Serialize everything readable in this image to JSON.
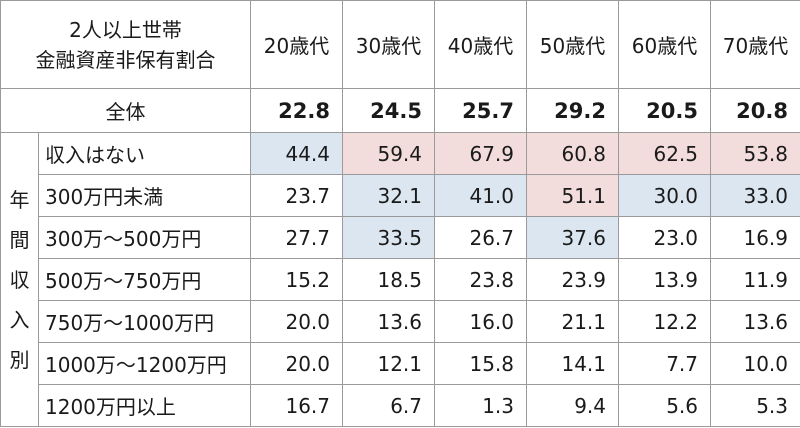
{
  "header": {
    "title_line1": "2人以上世帯",
    "title_line2": "金融資産非保有割合",
    "ages": [
      "20歳代",
      "30歳代",
      "40歳代",
      "50歳代",
      "60歳代",
      "70歳代"
    ]
  },
  "total": {
    "label": "全体",
    "values": [
      "22.8",
      "24.5",
      "25.7",
      "29.2",
      "20.5",
      "20.8"
    ]
  },
  "group_label_chars": [
    "年",
    "間",
    "収",
    "入",
    "別"
  ],
  "rows": [
    {
      "label": "収入はない",
      "values": [
        "44.4",
        "59.4",
        "67.9",
        "60.8",
        "62.5",
        "53.8"
      ],
      "highlight": [
        "blue",
        "red",
        "red",
        "red",
        "red",
        "red"
      ]
    },
    {
      "label": "300万円未満",
      "values": [
        "23.7",
        "32.1",
        "41.0",
        "51.1",
        "30.0",
        "33.0"
      ],
      "highlight": [
        "",
        "blue",
        "blue",
        "red",
        "blue",
        "blue"
      ]
    },
    {
      "label": "300万～500万円",
      "values": [
        "27.7",
        "33.5",
        "26.7",
        "37.6",
        "23.0",
        "16.9"
      ],
      "highlight": [
        "",
        "blue",
        "",
        "blue",
        "",
        ""
      ]
    },
    {
      "label": "500万～750万円",
      "values": [
        "15.2",
        "18.5",
        "23.8",
        "23.9",
        "13.9",
        "11.9"
      ],
      "highlight": [
        "",
        "",
        "",
        "",
        "",
        ""
      ]
    },
    {
      "label": "750万～1000万円",
      "values": [
        "20.0",
        "13.6",
        "16.0",
        "21.1",
        "12.2",
        "13.6"
      ],
      "highlight": [
        "",
        "",
        "",
        "",
        "",
        ""
      ]
    },
    {
      "label": "1000万～1200万円",
      "values": [
        "20.0",
        "12.1",
        "15.8",
        "14.1",
        "7.7",
        "10.0"
      ],
      "highlight": [
        "",
        "",
        "",
        "",
        "",
        ""
      ]
    },
    {
      "label": "1200万円以上",
      "values": [
        "16.7",
        "6.7",
        "1.3",
        "9.4",
        "5.6",
        "5.3"
      ],
      "highlight": [
        "",
        "",
        "",
        "",
        "",
        ""
      ]
    }
  ],
  "colors": {
    "blue": "#dce6f1",
    "red": "#f2dcdc"
  }
}
